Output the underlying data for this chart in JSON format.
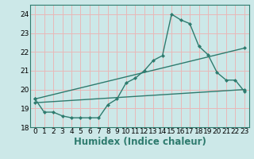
{
  "xlabel": "Humidex (Indice chaleur)",
  "xlim": [
    -0.5,
    23.5
  ],
  "ylim": [
    18.0,
    24.5
  ],
  "yticks": [
    18,
    19,
    20,
    21,
    22,
    23,
    24
  ],
  "xticks": [
    0,
    1,
    2,
    3,
    4,
    5,
    6,
    7,
    8,
    9,
    10,
    11,
    12,
    13,
    14,
    15,
    16,
    17,
    18,
    19,
    20,
    21,
    22,
    23
  ],
  "bg_color": "#cce8e8",
  "grid_color": "#e8b8b8",
  "line_color": "#2e7b6e",
  "line1_x": [
    0,
    1,
    2,
    3,
    4,
    5,
    6,
    7,
    8,
    9,
    10,
    11,
    12,
    13,
    14,
    15,
    16,
    17,
    18,
    19,
    20,
    21,
    22,
    23
  ],
  "line1_y": [
    19.5,
    18.8,
    18.8,
    18.6,
    18.5,
    18.5,
    18.5,
    18.5,
    19.2,
    19.5,
    20.35,
    20.6,
    21.0,
    21.55,
    21.8,
    24.0,
    23.7,
    23.5,
    22.3,
    21.85,
    20.9,
    20.5,
    20.5,
    19.9
  ],
  "line2_x": [
    0,
    23
  ],
  "line2_y": [
    19.3,
    20.0
  ],
  "line3_x": [
    0,
    23
  ],
  "line3_y": [
    19.5,
    22.2
  ],
  "marker_size": 2.5,
  "line_width": 1.0,
  "tick_fontsize": 6.5,
  "xlabel_fontsize": 8.5
}
